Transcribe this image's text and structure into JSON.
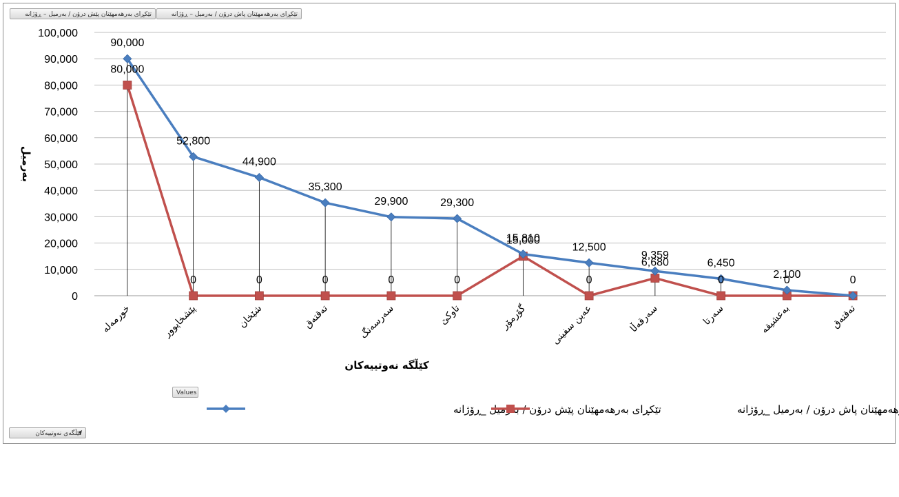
{
  "buttons": {
    "series_before": "تێکڕای بەرهەمهێنان پێش درۆن / بەرمیل – ڕۆژانە",
    "series_after": "تێکڕای بەرهەمهێنان پاش درۆن / بەرمیل – ڕۆژانە",
    "values": "Values",
    "fields": "کێڵگەی نەوتییەکان",
    "filter_icon": "filter-icon"
  },
  "chart_data": {
    "type": "line",
    "categories": [
      "خورمەلە",
      "پێشخاپوور",
      "شێخان",
      "تەقتەق",
      "سەرسەنگ",
      "تاوکێ",
      "گۆرمۆر",
      "عەین سفینی",
      "سەرقەڵا",
      "سەرتا",
      "بەعشیقە",
      "تەقتەق"
    ],
    "series": [
      {
        "name": "تێکڕای بەرهەمهێنان پێش درۆن / بەرمیل _ڕۆژانە",
        "color": "#4a7ebf",
        "marker": "diamond",
        "values": [
          90000,
          52800,
          44900,
          35300,
          29900,
          29300,
          15810,
          12500,
          9359,
          6450,
          2100,
          0
        ],
        "labels": [
          "90,000",
          "52,800",
          "44,900",
          "35,300",
          "29,900",
          "29,300",
          "15,810",
          "12,500",
          "9,359",
          "6,450",
          "2,100",
          ""
        ]
      },
      {
        "name": "تێکڕای بەرهەمهێنان پاش درۆن / بەرمیل _ڕۆژانە",
        "color": "#c0504d",
        "marker": "square",
        "values": [
          80000,
          0,
          0,
          0,
          0,
          0,
          15000,
          0,
          6680,
          0,
          0,
          0
        ],
        "labels": [
          "80,000",
          "0",
          "0",
          "0",
          "0",
          "0",
          "15,000",
          "0",
          "6,680",
          "0",
          "0",
          "0"
        ]
      }
    ],
    "ylabel": "بەرمیل",
    "xlabel": "کێڵگە نەوتییەکان",
    "ylim": [
      0,
      100000
    ],
    "yticks": [
      "0",
      "10,000",
      "20,000",
      "30,000",
      "40,000",
      "50,000",
      "60,000",
      "70,000",
      "80,000",
      "90,000",
      "100,000"
    ],
    "grid": true,
    "drop_lines": true,
    "legend_position": "bottom"
  }
}
